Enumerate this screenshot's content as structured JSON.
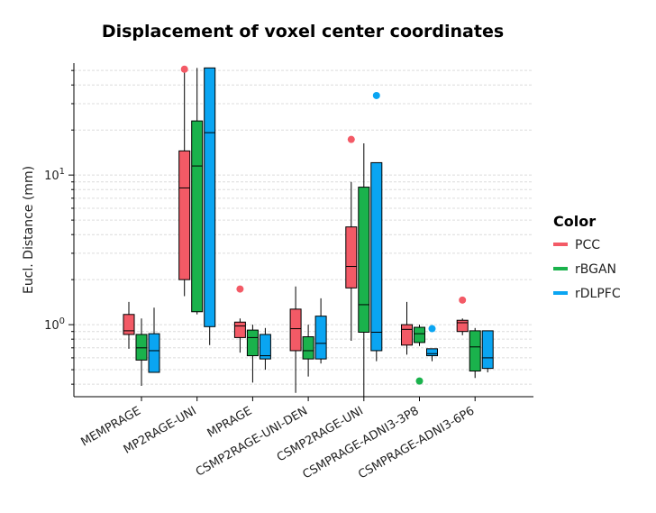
{
  "chart_data": {
    "type": "boxplot",
    "title": "Displacement of voxel center coordinates",
    "xlabel": "",
    "ylabel": "Eucl. Distance (mm)",
    "yscale": "log",
    "ylim": [
      0.33,
      56
    ],
    "yticks": [
      {
        "value": 1,
        "base": "10",
        "exp": "0"
      },
      {
        "value": 10,
        "base": "10",
        "exp": "1"
      }
    ],
    "categories": [
      "MEMPRAGE",
      "MP2RAGE-UNI",
      "MPRAGE",
      "CSMP2RAGE-UNI-DEN",
      "CSMP2RAGE-UNI",
      "CSMPRAGE-ADNI3-3P8",
      "CSMPRAGE-ADNI3-6P6"
    ],
    "legend": {
      "title": "Color",
      "position": "right"
    },
    "series": [
      {
        "name": "PCC",
        "color": "#f35a66",
        "boxes": [
          {
            "lower": 0.69,
            "q1": 0.86,
            "median": 0.91,
            "q3": 1.17,
            "upper": 1.42,
            "outliers": []
          },
          {
            "lower": 1.55,
            "q1": 2.0,
            "median": 8.2,
            "q3": 14.5,
            "upper": 52,
            "outliers": [
              51
            ]
          },
          {
            "lower": 0.65,
            "q1": 0.82,
            "median": 0.98,
            "q3": 1.04,
            "upper": 1.1,
            "outliers": [
              1.73
            ]
          },
          {
            "lower": 0.35,
            "q1": 0.67,
            "median": 0.94,
            "q3": 1.27,
            "upper": 1.8,
            "outliers": []
          },
          {
            "lower": 0.78,
            "q1": 1.76,
            "median": 2.45,
            "q3": 4.5,
            "upper": 9.0,
            "outliers": [
              17.3
            ]
          },
          {
            "lower": 0.63,
            "q1": 0.73,
            "median": 0.93,
            "q3": 1.0,
            "upper": 1.42,
            "outliers": []
          },
          {
            "lower": 0.85,
            "q1": 0.9,
            "median": 1.03,
            "q3": 1.07,
            "upper": 1.1,
            "outliers": [
              1.46
            ]
          }
        ]
      },
      {
        "name": "rBGAN",
        "color": "#1ab24c",
        "boxes": [
          {
            "lower": 0.39,
            "q1": 0.58,
            "median": 0.7,
            "q3": 0.86,
            "upper": 1.1,
            "outliers": []
          },
          {
            "lower": 1.17,
            "q1": 1.22,
            "median": 11.5,
            "q3": 23.0,
            "upper": 52,
            "outliers": []
          },
          {
            "lower": 0.41,
            "q1": 0.62,
            "median": 0.82,
            "q3": 0.92,
            "upper": 1.0,
            "outliers": []
          },
          {
            "lower": 0.45,
            "q1": 0.59,
            "median": 0.67,
            "q3": 0.83,
            "upper": 1.0,
            "outliers": []
          },
          {
            "lower": 0.33,
            "q1": 0.89,
            "median": 1.36,
            "q3": 8.3,
            "upper": 16.3,
            "outliers": []
          },
          {
            "lower": 0.72,
            "q1": 0.76,
            "median": 0.87,
            "q3": 0.96,
            "upper": 1.0,
            "outliers": [
              0.42
            ]
          },
          {
            "lower": 0.44,
            "q1": 0.49,
            "median": 0.71,
            "q3": 0.91,
            "upper": 0.95,
            "outliers": []
          }
        ]
      },
      {
        "name": "rDLPFC",
        "color": "#0aa5f2",
        "boxes": [
          {
            "lower": 0.48,
            "q1": 0.48,
            "median": 0.67,
            "q3": 0.87,
            "upper": 1.3,
            "outliers": []
          },
          {
            "lower": 0.73,
            "q1": 0.97,
            "median": 19.2,
            "q3": 52,
            "upper": 52,
            "outliers": []
          },
          {
            "lower": 0.5,
            "q1": 0.59,
            "median": 0.62,
            "q3": 0.86,
            "upper": 0.95,
            "outliers": []
          },
          {
            "lower": 0.55,
            "q1": 0.59,
            "median": 0.75,
            "q3": 1.14,
            "upper": 1.5,
            "outliers": []
          },
          {
            "lower": 0.57,
            "q1": 0.67,
            "median": 0.89,
            "q3": 12.1,
            "upper": 12.1,
            "outliers": [
              34.0
            ]
          },
          {
            "lower": 0.57,
            "q1": 0.62,
            "median": 0.64,
            "q3": 0.69,
            "upper": 0.69,
            "outliers": [
              0.94
            ]
          },
          {
            "lower": 0.48,
            "q1": 0.51,
            "median": 0.6,
            "q3": 0.91,
            "upper": 0.91,
            "outliers": []
          }
        ]
      }
    ]
  }
}
